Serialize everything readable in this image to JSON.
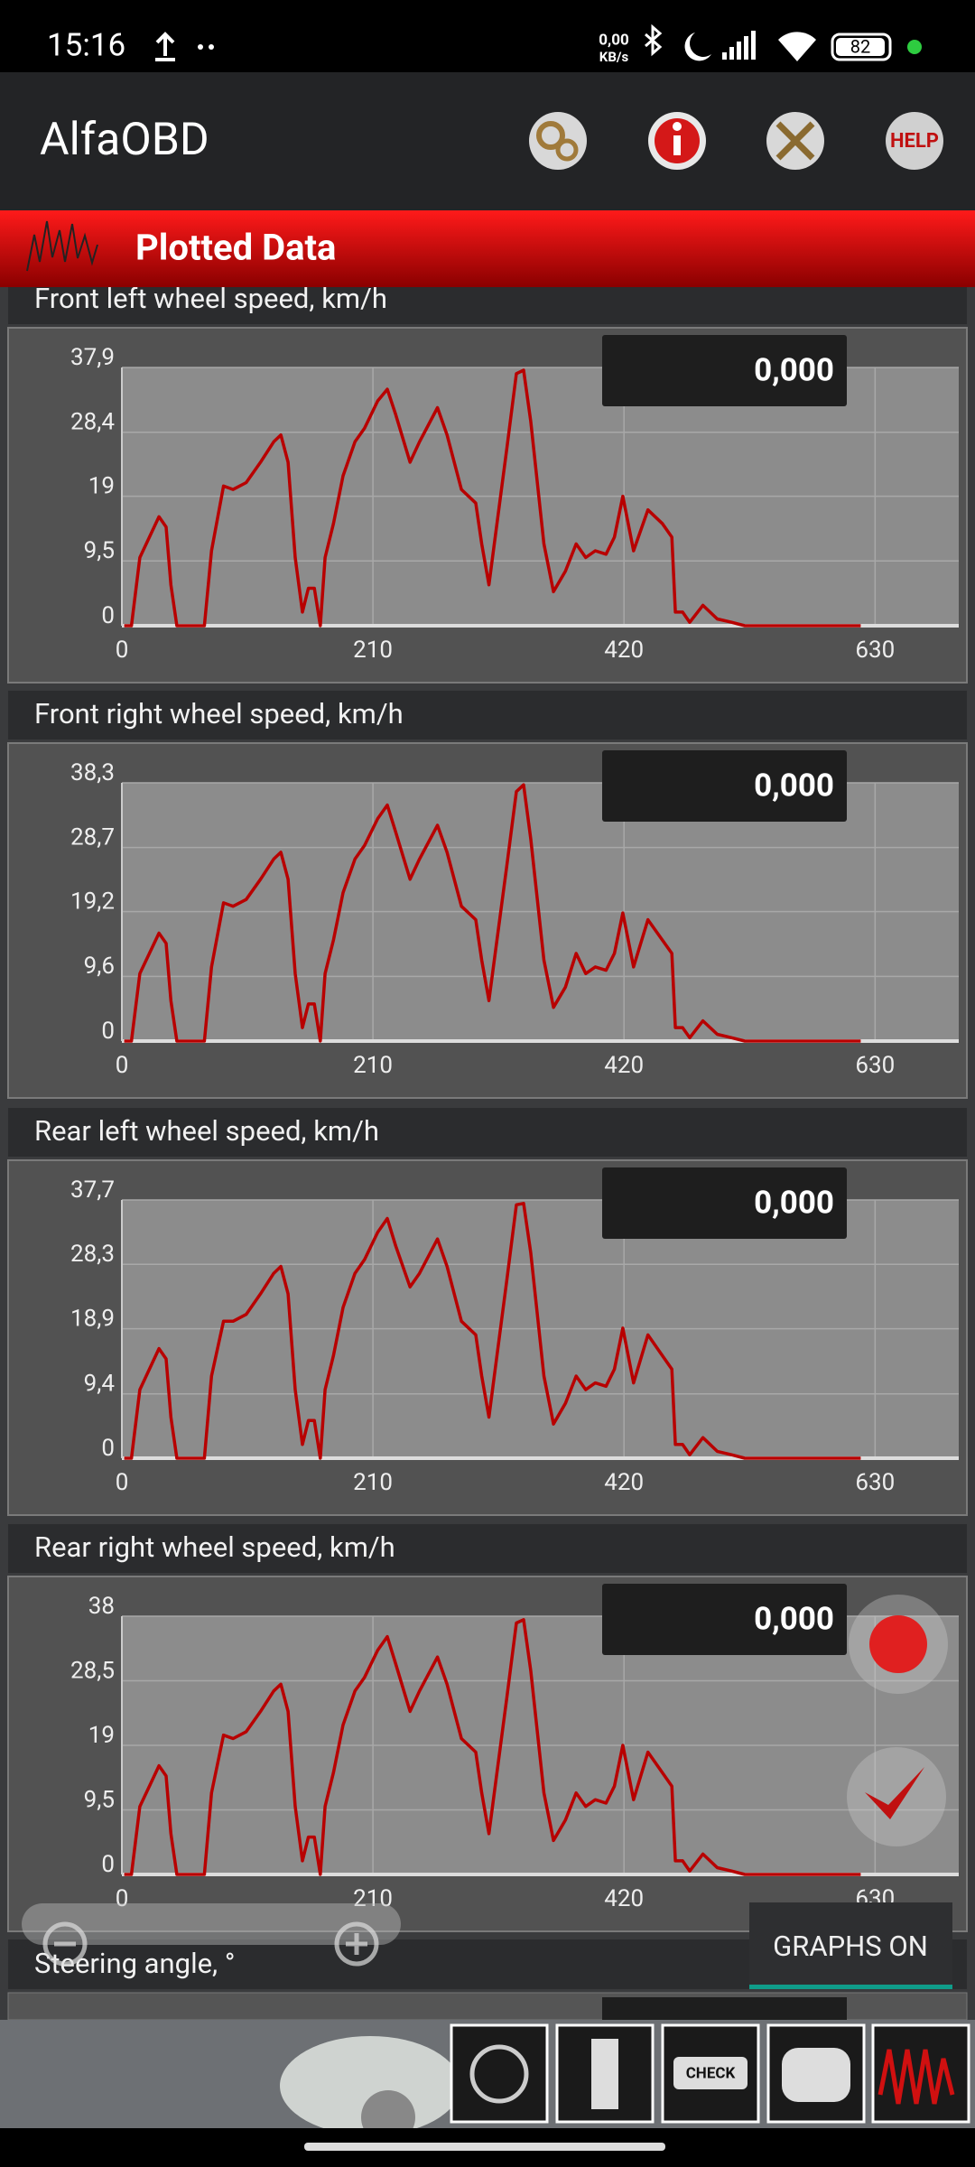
{
  "status_bar": {
    "time": "15:16",
    "net_speed": "0,00",
    "net_unit": "KB/s",
    "battery": "82"
  },
  "app_bar": {
    "title": "AlfaOBD",
    "help": "HELP"
  },
  "section": {
    "title": "Plotted Data"
  },
  "chart_data": [
    {
      "type": "line",
      "title": "Front left wheel speed, km/h",
      "readout": "0,000",
      "color": "#b80000",
      "grid": true,
      "xlim": [
        0,
        700
      ],
      "xticks": [
        0,
        210,
        420,
        630
      ],
      "ylim": [
        0,
        37.9
      ],
      "yticks": [
        0,
        {
          "value": 9.5,
          "label": "9,5"
        },
        19,
        {
          "value": 28.4,
          "label": "28,4"
        },
        {
          "value": 37.9,
          "label": "37,9"
        }
      ],
      "x": [
        2,
        8,
        15,
        23,
        31,
        37,
        41,
        46,
        69,
        75,
        85,
        93,
        104,
        116,
        127,
        133,
        139,
        145,
        151,
        156,
        161,
        166,
        170,
        177,
        185,
        195,
        203,
        214,
        222,
        229,
        241,
        249,
        264,
        272,
        284,
        296,
        301,
        307,
        313,
        322,
        330,
        336,
        342,
        353,
        361,
        371,
        380,
        388,
        396,
        405,
        412,
        419,
        428,
        440,
        452,
        460,
        463,
        469,
        475,
        486,
        498,
        510,
        521,
        618
      ],
      "values": [
        0,
        0,
        10,
        13,
        16,
        14.5,
        6,
        0,
        0,
        11,
        20.5,
        20,
        21,
        24,
        27,
        28,
        24,
        10,
        2,
        5.5,
        5.5,
        0,
        10,
        15,
        22,
        27,
        29,
        33,
        34.7,
        31,
        24,
        27,
        32,
        28,
        20,
        18,
        12,
        6,
        14,
        26,
        37,
        37.5,
        30,
        12,
        5,
        8,
        12,
        10,
        11,
        10.5,
        13,
        19,
        11,
        17,
        15,
        13,
        2,
        2,
        0.5,
        3,
        1,
        0.5,
        0,
        0
      ]
    },
    {
      "type": "line",
      "title": "Front right wheel speed, km/h",
      "readout": "0,000",
      "color": "#b80000",
      "grid": true,
      "xlim": [
        0,
        700
      ],
      "xticks": [
        0,
        210,
        420,
        630
      ],
      "ylim": [
        0,
        38.3
      ],
      "yticks": [
        0,
        {
          "value": 9.6,
          "label": "9,6"
        },
        {
          "value": 19.2,
          "label": "19,2"
        },
        {
          "value": 28.7,
          "label": "28,7"
        },
        {
          "value": 38.3,
          "label": "38,3"
        }
      ],
      "x": [
        2,
        8,
        15,
        23,
        31,
        37,
        41,
        46,
        69,
        75,
        85,
        93,
        104,
        116,
        127,
        133,
        139,
        145,
        151,
        156,
        161,
        166,
        170,
        177,
        185,
        195,
        203,
        214,
        222,
        229,
        241,
        249,
        264,
        272,
        284,
        296,
        301,
        307,
        313,
        322,
        330,
        336,
        342,
        353,
        361,
        371,
        380,
        388,
        396,
        405,
        412,
        419,
        428,
        440,
        452,
        460,
        463,
        469,
        475,
        486,
        498,
        510,
        521,
        618
      ],
      "values": [
        0,
        0,
        10,
        13,
        16,
        14.5,
        6,
        0,
        0,
        11,
        20.5,
        20,
        21,
        24,
        27,
        28,
        24,
        10,
        2,
        5.5,
        5.5,
        0,
        10,
        15,
        22,
        27,
        29,
        33,
        35,
        31,
        24,
        27,
        32,
        28,
        20,
        18,
        12,
        6,
        14,
        26,
        37,
        38,
        30,
        12,
        5,
        8,
        13,
        10,
        11,
        10.5,
        13,
        19,
        11,
        18,
        15,
        13,
        2,
        2,
        0.5,
        3,
        1,
        0.5,
        0,
        0
      ]
    },
    {
      "type": "line",
      "title": "Rear left wheel speed, km/h",
      "readout": "0,000",
      "color": "#b80000",
      "grid": true,
      "xlim": [
        0,
        700
      ],
      "xticks": [
        0,
        210,
        420,
        630
      ],
      "ylim": [
        0,
        37.7
      ],
      "yticks": [
        0,
        {
          "value": 9.4,
          "label": "9,4"
        },
        {
          "value": 18.9,
          "label": "18,9"
        },
        {
          "value": 28.3,
          "label": "28,3"
        },
        {
          "value": 37.7,
          "label": "37,7"
        }
      ],
      "x": [
        2,
        8,
        15,
        23,
        31,
        37,
        41,
        46,
        69,
        75,
        85,
        93,
        104,
        116,
        127,
        133,
        139,
        145,
        151,
        156,
        161,
        166,
        170,
        177,
        185,
        195,
        203,
        214,
        222,
        229,
        241,
        249,
        264,
        272,
        284,
        296,
        301,
        307,
        313,
        322,
        330,
        336,
        342,
        353,
        361,
        371,
        380,
        388,
        396,
        405,
        412,
        419,
        428,
        440,
        452,
        460,
        463,
        469,
        475,
        486,
        498,
        510,
        521,
        618
      ],
      "values": [
        0,
        0,
        10,
        13,
        16,
        14.5,
        6,
        0,
        0,
        12,
        20,
        20,
        21,
        24,
        27,
        28,
        24,
        10,
        2,
        5.5,
        5.5,
        0,
        10,
        15,
        22,
        27,
        29,
        33,
        35,
        31,
        25,
        27,
        32,
        28,
        20,
        18,
        12,
        6,
        14,
        26,
        37,
        37.2,
        30,
        12,
        5,
        8,
        12,
        10,
        11,
        10.5,
        13,
        19,
        11,
        18,
        15,
        13,
        2,
        2,
        0.5,
        3,
        1,
        0.5,
        0,
        0
      ]
    },
    {
      "type": "line",
      "title": "Rear right wheel speed, km/h",
      "readout": "0,000",
      "color": "#b80000",
      "grid": true,
      "xlim": [
        0,
        700
      ],
      "xticks": [
        0,
        210,
        420,
        630
      ],
      "ylim": [
        0,
        38
      ],
      "yticks": [
        0,
        {
          "value": 9.5,
          "label": "9,5"
        },
        19,
        {
          "value": 28.5,
          "label": "28,5"
        },
        38
      ],
      "x": [
        2,
        8,
        15,
        23,
        31,
        37,
        41,
        46,
        69,
        75,
        85,
        93,
        104,
        116,
        127,
        133,
        139,
        145,
        151,
        156,
        161,
        166,
        170,
        177,
        185,
        195,
        203,
        214,
        222,
        229,
        241,
        249,
        264,
        272,
        284,
        296,
        301,
        307,
        313,
        322,
        330,
        336,
        342,
        353,
        361,
        371,
        380,
        388,
        396,
        405,
        412,
        419,
        428,
        440,
        452,
        460,
        463,
        469,
        475,
        486,
        498,
        510,
        521,
        618
      ],
      "values": [
        0,
        0,
        10,
        13,
        16,
        14.5,
        6,
        0,
        0,
        12,
        20.5,
        20,
        21,
        24,
        27,
        28,
        24,
        10,
        2,
        5.5,
        5.5,
        0,
        10,
        15,
        22,
        27,
        29,
        33,
        35,
        31,
        24,
        27,
        32,
        28,
        20,
        18,
        12,
        6,
        14,
        26,
        37,
        37.5,
        30,
        12,
        5,
        8,
        12,
        10,
        11,
        10.5,
        13,
        19,
        11,
        18,
        15,
        13,
        2,
        2,
        0.5,
        3,
        1,
        0.5,
        0,
        0
      ]
    }
  ],
  "steering": {
    "title": "Steering angle, °"
  },
  "controls": {
    "graphs": "GRAPHS ON"
  },
  "bottom_bar": {
    "check": "CHECK"
  }
}
